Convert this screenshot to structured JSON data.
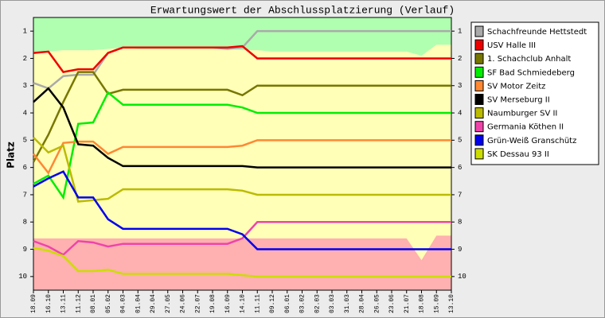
{
  "chart_data": {
    "type": "line",
    "title": "Erwartungswert der Abschlussplatzierung (Verlauf)",
    "y_label": "Platz",
    "y_inverted": true,
    "ylim": [
      0.5,
      10.5
    ],
    "yticks": [
      1,
      2,
      3,
      4,
      5,
      6,
      7,
      8,
      9,
      10
    ],
    "categories": [
      "18.09",
      "16.10",
      "13.11",
      "11.12",
      "08.01",
      "05.02",
      "04.03",
      "01.04",
      "29.04",
      "27.05",
      "24.06",
      "22.07",
      "19.08",
      "16.09",
      "14.10",
      "11.11",
      "09.12",
      "06.01",
      "03.02",
      "02.03",
      "03.03",
      "31.03",
      "28.04",
      "26.05",
      "23.06",
      "21.07",
      "18.08",
      "15.09",
      "13.10"
    ],
    "areas": {
      "upper": {
        "color": "#b0ffb0",
        "values": [
          1.85,
          1.75,
          1.7,
          1.7,
          1.7,
          1.65,
          1.6,
          1.65,
          1.65,
          1.65,
          1.65,
          1.65,
          1.65,
          1.65,
          1.7,
          1.7,
          1.75,
          1.75,
          1.75,
          1.75,
          1.75,
          1.75,
          1.75,
          1.75,
          1.75,
          1.75,
          1.9,
          1.5,
          1.5
        ]
      },
      "lower": {
        "color": "#ffb0b0",
        "values": [
          8.6,
          8.6,
          8.6,
          8.6,
          8.6,
          8.6,
          8.6,
          8.6,
          8.6,
          8.6,
          8.6,
          8.6,
          8.6,
          8.6,
          8.6,
          8.6,
          8.6,
          8.6,
          8.6,
          8.6,
          8.6,
          8.6,
          8.6,
          8.6,
          8.6,
          8.6,
          9.4,
          8.5,
          8.5
        ]
      },
      "middle_color": "#ffffb8"
    },
    "series": [
      {
        "name": "Schachfreunde Hettstedt",
        "color": "#aaaaaa",
        "values": [
          2.9,
          3.1,
          2.65,
          2.6,
          2.6,
          1.8,
          1.6,
          1.6,
          1.6,
          1.6,
          1.6,
          1.6,
          1.6,
          1.65,
          1.6,
          1,
          1,
          1,
          1,
          1,
          1,
          1,
          1,
          1,
          1,
          1,
          1,
          1,
          1
        ]
      },
      {
        "name": "USV Halle III",
        "color": "#ee0000",
        "values": [
          1.8,
          1.75,
          2.5,
          2.4,
          2.4,
          1.8,
          1.6,
          1.6,
          1.6,
          1.6,
          1.6,
          1.6,
          1.6,
          1.6,
          1.55,
          2,
          2,
          2,
          2,
          2,
          2,
          2,
          2,
          2,
          2,
          2,
          2,
          2,
          2
        ]
      },
      {
        "name": "1. Schachclub Anhalt",
        "color": "#777700",
        "values": [
          5.8,
          4.8,
          3.6,
          2.5,
          2.5,
          3.3,
          3.15,
          3.15,
          3.15,
          3.15,
          3.15,
          3.15,
          3.15,
          3.15,
          3.35,
          3,
          3,
          3,
          3,
          3,
          3,
          3,
          3,
          3,
          3,
          3,
          3,
          3,
          3
        ]
      },
      {
        "name": "SF Bad Schmiedeberg",
        "color": "#00ee00",
        "values": [
          6.6,
          6.3,
          7.1,
          4.4,
          4.35,
          3.25,
          3.7,
          3.7,
          3.7,
          3.7,
          3.7,
          3.7,
          3.7,
          3.7,
          3.8,
          4,
          4,
          4,
          4,
          4,
          4,
          4,
          4,
          4,
          4,
          4,
          4,
          4,
          4
        ]
      },
      {
        "name": "SV Motor Zeitz",
        "color": "#ff8833",
        "values": [
          5.5,
          6.2,
          5.1,
          5.05,
          5.05,
          5.5,
          5.25,
          5.25,
          5.25,
          5.25,
          5.25,
          5.25,
          5.25,
          5.25,
          5.2,
          5,
          5,
          5,
          5,
          5,
          5,
          5,
          5,
          5,
          5,
          5,
          5,
          5,
          5
        ]
      },
      {
        "name": "SV Merseburg II",
        "color": "#000000",
        "values": [
          3.6,
          3.1,
          3.8,
          5.15,
          5.2,
          5.65,
          5.95,
          5.95,
          5.95,
          5.95,
          5.95,
          5.95,
          5.95,
          5.95,
          5.95,
          6,
          6,
          6,
          6,
          6,
          6,
          6,
          6,
          6,
          6,
          6,
          6,
          6,
          6
        ]
      },
      {
        "name": "Naumburger SV II",
        "color": "#bbbb00",
        "values": [
          4.9,
          5.45,
          5.2,
          7.25,
          7.2,
          7.15,
          6.8,
          6.8,
          6.8,
          6.8,
          6.8,
          6.8,
          6.8,
          6.8,
          6.85,
          7,
          7,
          7,
          7,
          7,
          7,
          7,
          7,
          7,
          7,
          7,
          7,
          7,
          7
        ]
      },
      {
        "name": "Germania Köthen II",
        "color": "#ee44aa",
        "values": [
          8.7,
          8.9,
          9.2,
          8.7,
          8.75,
          8.9,
          8.8,
          8.8,
          8.8,
          8.8,
          8.8,
          8.8,
          8.8,
          8.8,
          8.6,
          8,
          8,
          8,
          8,
          8,
          8,
          8,
          8,
          8,
          8,
          8,
          8,
          8,
          8
        ]
      },
      {
        "name": "Grün-Weiß Granschütz",
        "color": "#0000ee",
        "values": [
          6.7,
          6.4,
          6.15,
          7.1,
          7.1,
          7.9,
          8.25,
          8.25,
          8.25,
          8.25,
          8.25,
          8.25,
          8.25,
          8.25,
          8.45,
          9,
          9,
          9,
          9,
          9,
          9,
          9,
          9,
          9,
          9,
          9,
          9,
          9,
          9
        ]
      },
      {
        "name": "SK Dessau 93 II",
        "color": "#ccdd00",
        "values": [
          8.95,
          9.05,
          9.25,
          9.8,
          9.8,
          9.75,
          9.9,
          9.9,
          9.9,
          9.9,
          9.9,
          9.9,
          9.9,
          9.9,
          9.95,
          10,
          10,
          10,
          10,
          10,
          10,
          10,
          10,
          10,
          10,
          10,
          10,
          10,
          10
        ]
      }
    ]
  }
}
